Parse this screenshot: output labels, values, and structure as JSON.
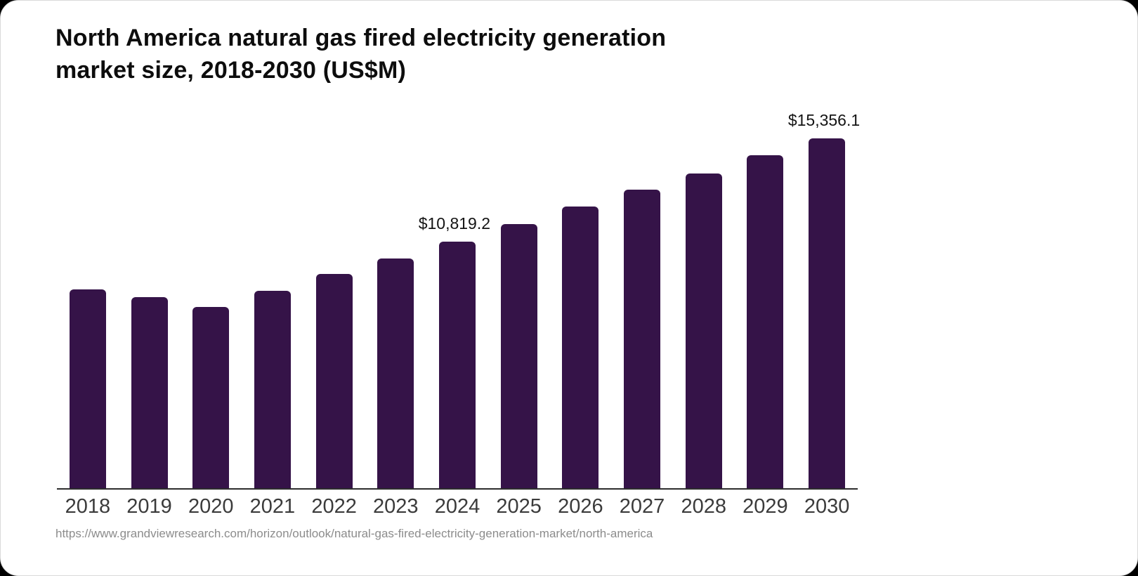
{
  "header": {
    "title_line1": "North America natural gas fired electricity generation",
    "title_line2": "market size, 2018-2030 (US$M)"
  },
  "footer": {
    "source_url": "https://www.grandviewresearch.com/horizon/outlook/natural-gas-fired-electricity-generation-market/north-america"
  },
  "chart_data": {
    "type": "bar",
    "title": "North America natural gas fired electricity generation market size, 2018-2030 (US$M)",
    "unit": "US$M",
    "categories": [
      "2018",
      "2019",
      "2020",
      "2021",
      "2022",
      "2023",
      "2024",
      "2025",
      "2026",
      "2027",
      "2028",
      "2029",
      "2030"
    ],
    "values": [
      8720,
      8390,
      7950,
      8660,
      9400,
      10080,
      10819.2,
      11590,
      12360,
      13100,
      13810,
      14610,
      15356.1
    ],
    "value_labels": [
      {
        "index": 6,
        "category": "2024",
        "text": "$10,819.2"
      },
      {
        "index": 12,
        "category": "2030",
        "text": "$15,356.1"
      }
    ],
    "ylim": [
      0,
      16000
    ],
    "xlabel": "",
    "ylabel": "",
    "grid": false,
    "legend_position": "none",
    "bar_color": "#351348",
    "axis_color": "#2e2e2e",
    "tick_label_color": "#3b3b3b",
    "value_label_color": "#141414"
  }
}
